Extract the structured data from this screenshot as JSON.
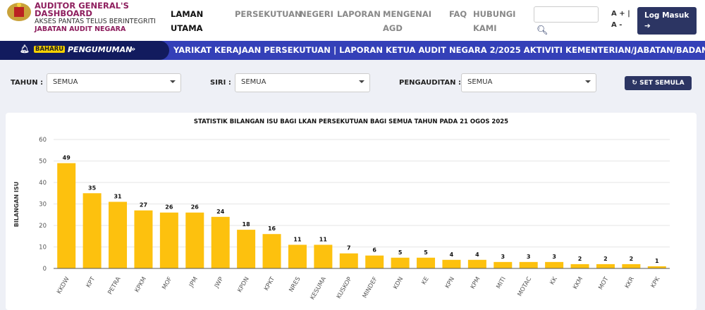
{
  "header": {
    "brand_title_1": "AUDITOR GENERAL'S",
    "brand_title_2": "DASHBOARD",
    "tagline": "AKSES PANTAS TELUS BERINTEGRITI",
    "agency": "JABATAN AUDIT NEGARA",
    "nav": [
      {
        "label": "LAMAN",
        "label2": "UTAMA"
      },
      {
        "label": "PERSEKUTUAN"
      },
      {
        "label": "NEGERI"
      },
      {
        "label": "LAPORAN"
      },
      {
        "label": "MENGENAI",
        "label2": "AGD"
      },
      {
        "label": "FAQ"
      },
      {
        "label": "HUBUNGI",
        "label2": "KAMI"
      }
    ],
    "search_value": "",
    "font_size_control": "A + | A -",
    "login_label": "Log Masuk"
  },
  "banner": {
    "badge": "BAHARU",
    "label": "PENGUMUMAN",
    "ticker": "YARIKAT KERAJAAN PERSEKUTUAN | LAPORAN KETUA AUDIT NEGARA 2/2025 AKTIVITI KEMENTERIAN/JABATAN/BADAN BERKANUN/S"
  },
  "filters": {
    "tahun_label": "TAHUN :",
    "tahun_value": "SEMUA",
    "siri_label": "SIRI :",
    "siri_value": "SEMUA",
    "pengauditan_label": "PENGAUDITAN :",
    "pengauditan_value": "SEMUA",
    "reset_label": "SET SEMULA"
  },
  "chart_data": {
    "type": "bar",
    "title": "STATISTIK BILANGAN ISU BAGI LKAN PERSEKUTUAN BAGI SEMUA TAHUN PADA 21 OGOS 2025",
    "xlabel": "",
    "ylabel": "BILANGAN ISU",
    "ylim": [
      0,
      60
    ],
    "yticks": [
      0,
      10,
      20,
      30,
      40,
      50,
      60
    ],
    "color": "#fdc10e",
    "categories": [
      "KKDW",
      "KPT",
      "PETRA",
      "KPKM",
      "MOF",
      "JPM",
      "JWP",
      "KPDN",
      "KPKT",
      "NRES",
      "KESUMA",
      "KUSKOP",
      "MINDEF",
      "KDN",
      "KE",
      "KPN",
      "KPM",
      "MITI",
      "MOTAC",
      "KK",
      "KKM",
      "MOT",
      "KKR",
      "KPK"
    ],
    "values": [
      49,
      35,
      31,
      27,
      26,
      26,
      24,
      18,
      16,
      11,
      11,
      7,
      6,
      5,
      5,
      4,
      4,
      3,
      3,
      3,
      2,
      2,
      2,
      1
    ]
  }
}
